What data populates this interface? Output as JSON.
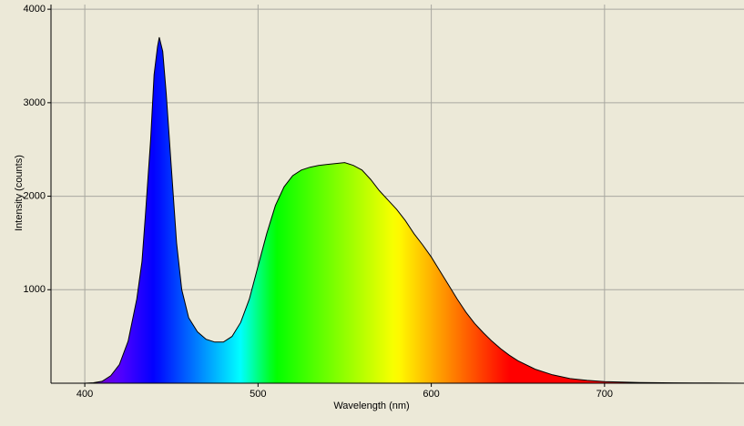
{
  "chart_data": {
    "type": "area",
    "x_label": "Wavelength (nm)",
    "y_label": "Intensity (counts)",
    "x": [
      400,
      405,
      410,
      415,
      420,
      425,
      430,
      433,
      435,
      438,
      440,
      442,
      443,
      445,
      447,
      450,
      453,
      456,
      460,
      465,
      470,
      475,
      480,
      485,
      490,
      495,
      500,
      505,
      510,
      515,
      520,
      525,
      530,
      535,
      540,
      545,
      550,
      555,
      560,
      565,
      570,
      575,
      580,
      585,
      590,
      595,
      600,
      605,
      610,
      615,
      620,
      625,
      630,
      635,
      640,
      645,
      650,
      660,
      670,
      680,
      690,
      700,
      720,
      740,
      760,
      780
    ],
    "values": [
      0,
      5,
      20,
      80,
      200,
      450,
      900,
      1300,
      1800,
      2600,
      3300,
      3600,
      3700,
      3550,
      3100,
      2300,
      1500,
      1000,
      700,
      550,
      470,
      440,
      440,
      500,
      650,
      900,
      1250,
      1600,
      1900,
      2100,
      2220,
      2280,
      2310,
      2330,
      2340,
      2350,
      2360,
      2330,
      2280,
      2180,
      2060,
      1960,
      1860,
      1740,
      1600,
      1480,
      1350,
      1200,
      1050,
      900,
      760,
      640,
      540,
      450,
      370,
      300,
      240,
      150,
      90,
      50,
      30,
      18,
      8,
      4,
      2,
      0
    ],
    "xlim": [
      380.5,
      780.5
    ],
    "ylim": [
      0,
      4050
    ],
    "xticks": [
      400,
      500,
      600,
      700
    ],
    "yticks": [
      1000,
      2000,
      3000,
      4000
    ],
    "grid": true,
    "line_color": "#000000",
    "background": "#ece9d8"
  }
}
